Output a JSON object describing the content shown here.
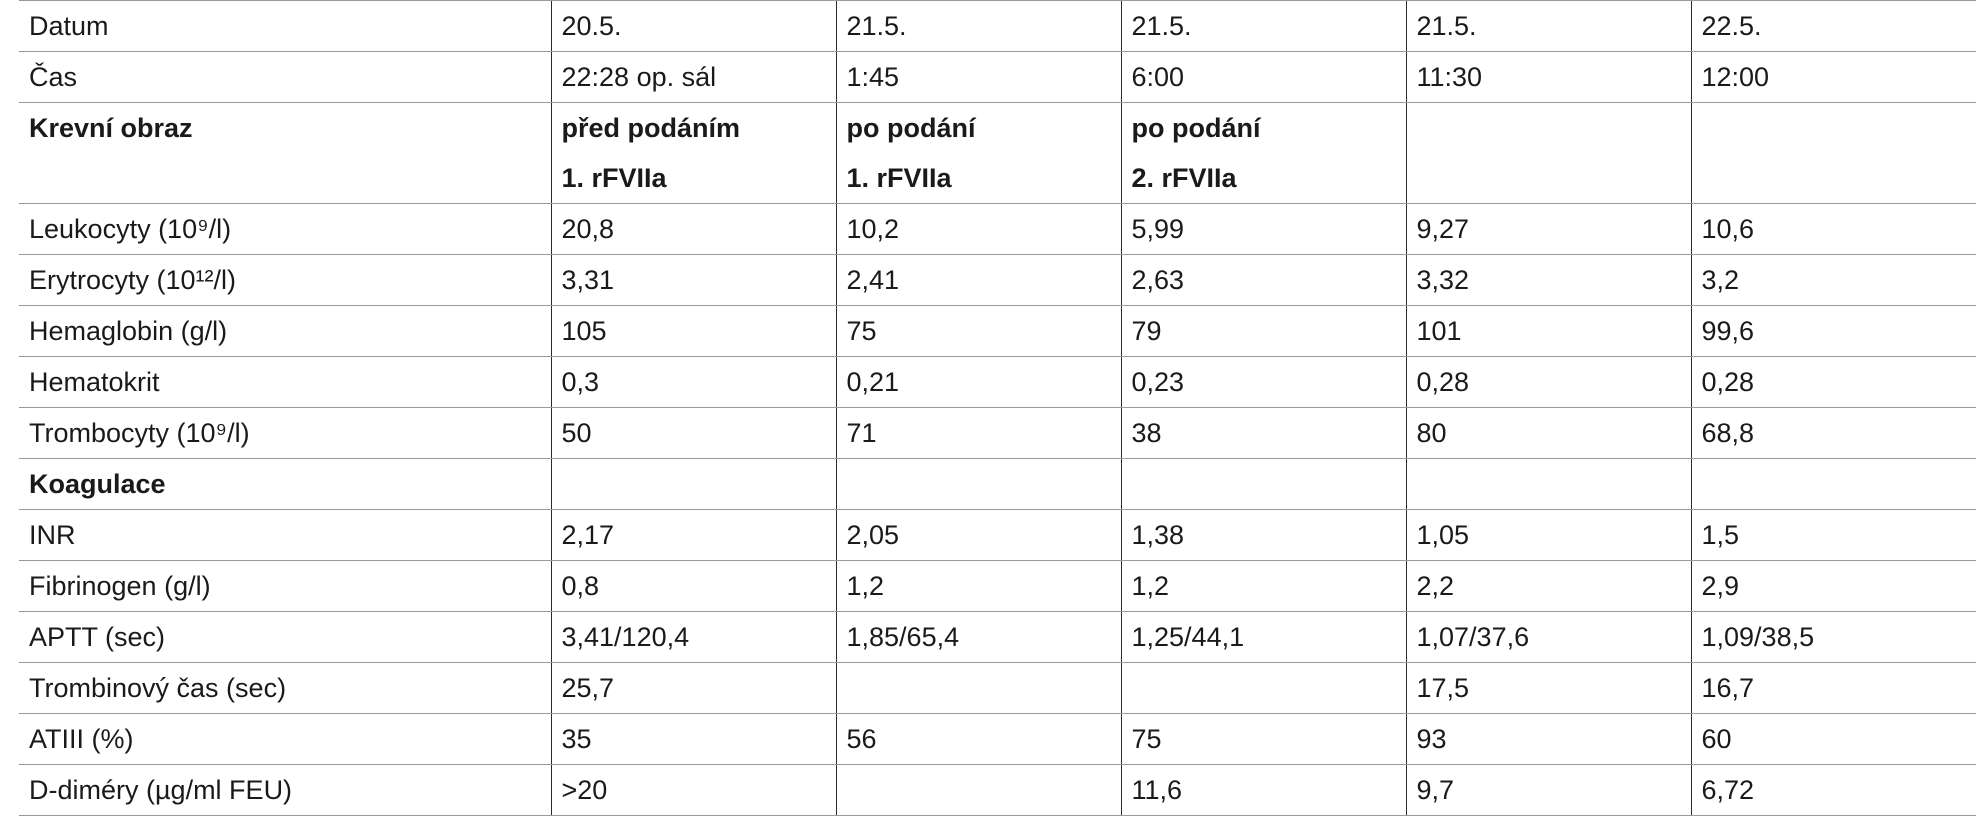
{
  "table": {
    "rows": [
      {
        "cells": [
          "Datum",
          "20.5.",
          "21.5.",
          "21.5.",
          "21.5.",
          "22.5."
        ]
      },
      {
        "cells": [
          "Čas",
          "22:28 op. sál",
          "1:45",
          "6:00",
          "11:30",
          "12:00"
        ]
      },
      {
        "bold": true,
        "cells": [
          "Krevní obraz",
          [
            "před podáním",
            "1. rFVIIa"
          ],
          [
            "po podání",
            "1. rFVIIa"
          ],
          [
            "po podání",
            "2. rFVIIa"
          ],
          null,
          null
        ]
      },
      {
        "cells": [
          "Leukocyty (10⁹/l)",
          "20,8",
          "10,2",
          "5,99",
          "9,27",
          "10,6"
        ]
      },
      {
        "cells": [
          "Erytrocyty (10¹²/l)",
          "3,31",
          "2,41",
          "2,63",
          "3,32",
          "3,2"
        ]
      },
      {
        "cells": [
          "Hemaglobin (g/l)",
          "105",
          "75",
          "79",
          "101",
          "99,6"
        ]
      },
      {
        "cells": [
          "Hematokrit",
          "0,3",
          "0,21",
          "0,23",
          "0,28",
          "0,28"
        ]
      },
      {
        "cells": [
          "Trombocyty (10⁹/l)",
          "50",
          "71",
          "38",
          "80",
          "68,8"
        ]
      },
      {
        "bold": true,
        "cells": [
          "Koagulace",
          null,
          null,
          null,
          null,
          null
        ]
      },
      {
        "cells": [
          "INR",
          "2,17",
          "2,05",
          "1,38",
          "1,05",
          "1,5"
        ]
      },
      {
        "cells": [
          "Fibrinogen (g/l)",
          "0,8",
          "1,2",
          "1,2",
          "2,2",
          "2,9"
        ]
      },
      {
        "cells": [
          "APTT (sec)",
          "3,41/120,4",
          "1,85/65,4",
          "1,25/44,1",
          "1,07/37,6",
          "1,09/38,5"
        ]
      },
      {
        "cells": [
          "Trombinový čas (sec)",
          "25,7",
          null,
          null,
          "17,5",
          "16,7"
        ]
      },
      {
        "cells": [
          "ATIII (%)",
          "35",
          "56",
          "75",
          "93",
          "60"
        ]
      },
      {
        "cells": [
          "D-diméry (µg/ml FEU)",
          ">20",
          null,
          "11,6",
          "9,7",
          "6,72"
        ]
      }
    ]
  }
}
